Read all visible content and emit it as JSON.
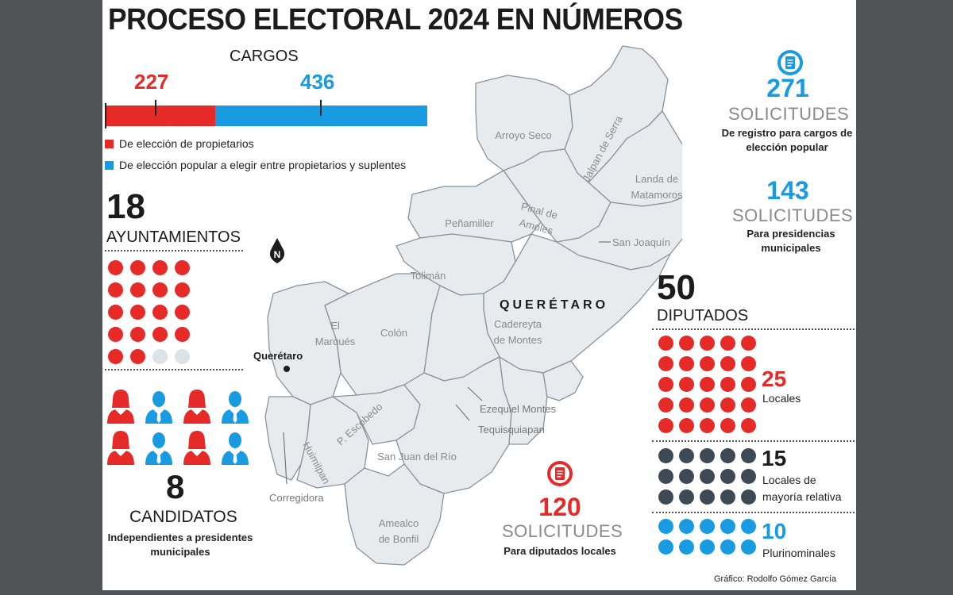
{
  "title": "PROCESO ELECTORAL 2024 EN NÚMEROS",
  "colors": {
    "red": "#e52a27",
    "blue": "#189be0",
    "dark": "#3d4a55",
    "empty": "#dde2e6",
    "map": "#e8ebee"
  },
  "cargos": {
    "heading": "CARGOS",
    "propietarios": 227,
    "eleccion_popular": 436,
    "legend": [
      {
        "label": "De elección de propietarios",
        "color": "#e52a27"
      },
      {
        "label": "De elección popular a elegir entre propietarios y suplentes",
        "color": "#189be0"
      }
    ]
  },
  "ayuntamientos": {
    "number": "18",
    "label": "AYUNTAMIENTOS",
    "total_dots": 20,
    "filled": 18
  },
  "candidatos": {
    "number": "8",
    "label": "CANDIDATOS",
    "desc": "Independientes a presidentes municipales",
    "icons": [
      "female-red",
      "male-blue",
      "female-red",
      "male-blue",
      "female-red",
      "male-blue",
      "female-red",
      "male-blue"
    ]
  },
  "solicitudes_registro": {
    "number": "271",
    "label": "SOLICITUDES",
    "desc": "De registro para cargos de elección popular",
    "icon": "document-icon"
  },
  "solicitudes_presidencias": {
    "number": "143",
    "label": "SOLICITUDES",
    "desc": "Para presidencias municipales"
  },
  "solicitudes_diputados": {
    "number": "120",
    "label": "SOLICITUDES",
    "desc": "Para diputados locales",
    "icon": "document-icon"
  },
  "diputados": {
    "number": "50",
    "label": "DIPUTADOS",
    "groups": [
      {
        "number": "25",
        "label": "Locales",
        "count": 25,
        "color": "#e52a27"
      },
      {
        "number": "15",
        "label": "Locales de mayoría relativa",
        "count": 15,
        "color": "#3d4a55"
      },
      {
        "number": "10",
        "label": "Plurinominales",
        "count": 10,
        "color": "#189be0"
      }
    ]
  },
  "map": {
    "state": "QUERÉTARO",
    "north": "N",
    "capital": "Querétaro",
    "municipalities": {
      "arroyo_seco": "Arroyo Seco",
      "jalpan": "Jalpan de Serra",
      "landa_1": "Landa de",
      "landa_2": "Matamoros",
      "pinal_1": "Pinal de",
      "pinal_2": "Amoles",
      "penamiller": "Peñamiller",
      "san_joaquin": "San Joaquín",
      "toliman": "Tolimán",
      "el_marques_1": "El",
      "el_marques_2": "Marqués",
      "colon": "Colón",
      "cadereyta_1": "Cadereyta",
      "cadereyta_2": "de Montes",
      "ezequiel": "Ezequiel Montes",
      "tequisquiapan": "Tequisquiapan",
      "escobedo": "P. Escobedo",
      "huimilpan": "Huimilpan",
      "san_juan": "San Juan del Río",
      "corregidora": "Corregidora",
      "amealco_1": "Amealco",
      "amealco_2": "de Bonfil"
    }
  },
  "credit": "Gráfico: Rodolfo Gómez García"
}
